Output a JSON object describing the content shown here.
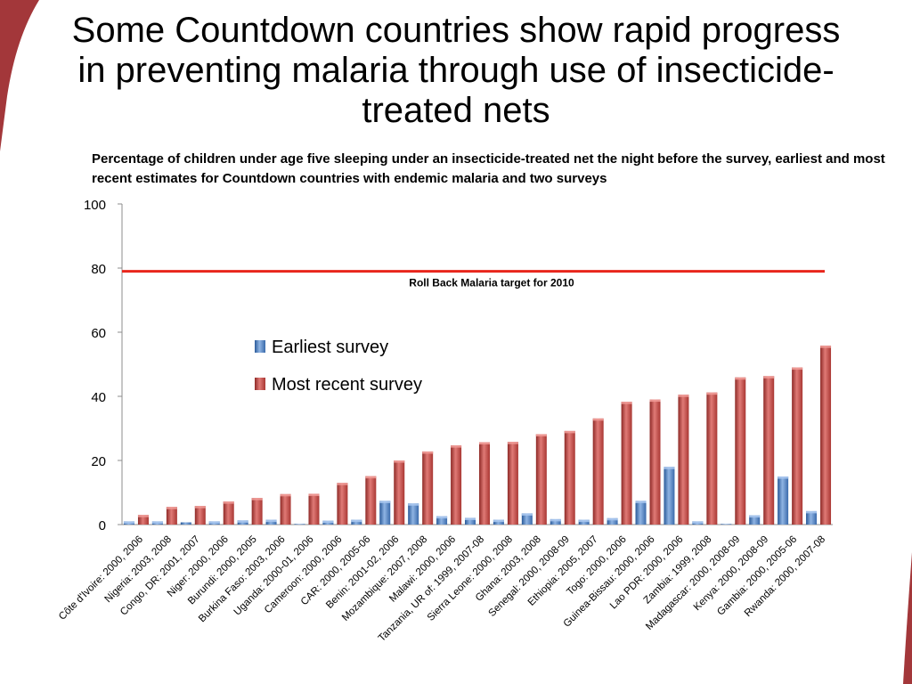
{
  "page": {
    "title": "Some Countdown countries show rapid progress in preventing malaria through use of insecticide-treated nets",
    "subtitle": "Percentage of children under age five sleeping under an insecticide-treated net the night before the survey, earliest and most recent estimates for Countdown countries with endemic malaria and two surveys"
  },
  "chart_data": {
    "type": "bar",
    "ylim": [
      0,
      100
    ],
    "yticks": [
      0,
      20,
      40,
      60,
      80,
      100
    ],
    "grid": false,
    "legend_position": "upper-left inside plot",
    "categories": [
      "Côte d'Ivoire: 2000, 2006",
      "Nigeria: 2003, 2008",
      "Congo, DR: 2001, 2007",
      "Niger: 2000, 2006",
      "Burundi: 2000, 2005",
      "Burkina Faso: 2003, 2006",
      "Uganda: 2000-01, 2006",
      "Cameroon: 2000, 2006",
      "CAR: 2000, 2005-06",
      "Benin: 2001-02, 2006",
      "Mozambique: 2007, 2008",
      "Malawi: 2000, 2006",
      "Tanzania, UR of: 1999, 2007-08",
      "Sierra Leone: 2000, 2008",
      "Ghana: 2003, 2008",
      "Senegal: 2000, 2008-09",
      "Ethiopia: 2005, 2007",
      "Togo: 2000, 2006",
      "Guinea-Bissau: 2000, 2006",
      "Lao PDR: 2000, 2006",
      "Zambia: 1999, 2008",
      "Madagascar: 2000, 2008-09",
      "Kenya: 2000, 2008-09",
      "Gambia: 2000, 2005-06",
      "Rwanda: 2000, 2007-08"
    ],
    "series": [
      {
        "name": "Earliest survey",
        "color": "#4f81bd",
        "values": [
          1,
          1,
          0.7,
          1,
          1.3,
          1.5,
          0.2,
          1.2,
          1.5,
          7.4,
          6.6,
          2.6,
          2.1,
          1.5,
          3.5,
          1.7,
          1.5,
          2,
          7.4,
          18,
          1,
          0.2,
          2.9,
          15,
          4.2
        ]
      },
      {
        "name": "Most recent survey",
        "color": "#c0504d",
        "values": [
          3,
          5.5,
          5.8,
          7.2,
          8.3,
          9.5,
          9.6,
          13,
          15.1,
          20,
          22.8,
          24.7,
          25.7,
          25.8,
          28.2,
          29.2,
          33.1,
          38.3,
          39,
          40.5,
          41.2,
          45.9,
          46.3,
          49,
          55.8
        ]
      }
    ],
    "target_line": {
      "value": 79,
      "label": "Roll Back Malaria target for 2010",
      "color": "#e8261c"
    }
  }
}
